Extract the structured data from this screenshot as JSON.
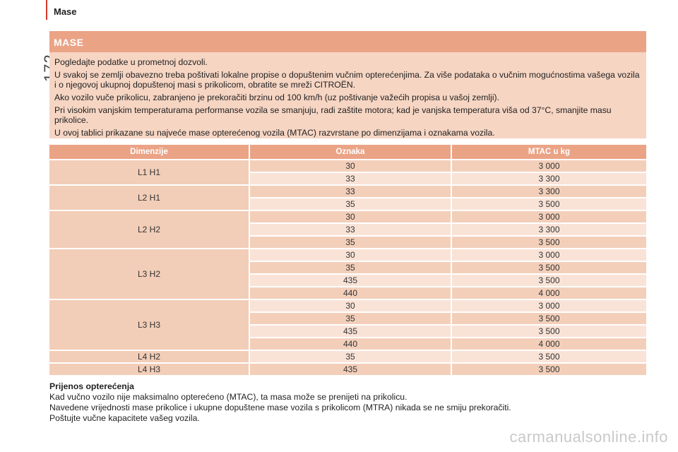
{
  "header": {
    "section": "Mase",
    "page_number": "172"
  },
  "infobox": {
    "title": "MASE",
    "paragraphs": [
      "Pogledajte podatke u prometnoj dozvoli.",
      "U svakoj se zemlji obavezno treba poštivati lokalne propise o dopuštenim vučnim opterećenjima. Za više podataka o vučnim mogućnostima vašega vozila i o njegovoj ukupnoj dopuštenoj masi s prikolicom, obratite se mreži CITROËN.",
      "Ako vozilo vuče prikolicu, zabranjeno je prekoračiti brzinu od 100 km/h (uz poštivanje važećih propisa u vašoj zemlji).",
      "Pri visokim vanjskim temperaturama performanse vozila se smanjuju, radi zaštite motora; kad je vanjska temperatura viša od 37°C, smanjite masu prikolice.",
      "U ovoj tablici prikazane su najveće mase opterećenog vozila (MTAC) razvrstane po dimenzijama i oznakama vozila."
    ]
  },
  "table": {
    "headers": [
      "Dimenzije",
      "Oznaka",
      "MTAC u kg"
    ],
    "groups": [
      {
        "dim": "L1 H1",
        "rows": [
          [
            "30",
            "3 000"
          ],
          [
            "33",
            "3 300"
          ]
        ]
      },
      {
        "dim": "L2 H1",
        "rows": [
          [
            "33",
            "3 300"
          ],
          [
            "35",
            "3 500"
          ]
        ]
      },
      {
        "dim": "L2 H2",
        "rows": [
          [
            "30",
            "3 000"
          ],
          [
            "33",
            "3 300"
          ],
          [
            "35",
            "3 500"
          ]
        ]
      },
      {
        "dim": "L3 H2",
        "rows": [
          [
            "30",
            "3 000"
          ],
          [
            "35",
            "3 500"
          ],
          [
            "435",
            "3 500"
          ],
          [
            "440",
            "4 000"
          ]
        ]
      },
      {
        "dim": "L3 H3",
        "rows": [
          [
            "30",
            "3 000"
          ],
          [
            "35",
            "3 500"
          ],
          [
            "435",
            "3 500"
          ],
          [
            "440",
            "4 000"
          ]
        ]
      },
      {
        "dim": "L4 H2",
        "rows": [
          [
            "35",
            "3 500"
          ]
        ]
      },
      {
        "dim": "L4 H3",
        "rows": [
          [
            "435",
            "3 500"
          ]
        ]
      }
    ]
  },
  "footer": {
    "title": "Prijenos opterećenja",
    "lines": [
      "Kad vučno vozilo nije maksimalno opterećeno (MTAC), ta masa može se prenijeti na prikolicu.",
      "Navedene vrijednosti mase prikolice i ukupne dopuštene mase vozila s prikolicom (MTRA) nikada se ne smiju prekoračiti.",
      "Poštujte vučne kapacitete vašeg vozila."
    ]
  },
  "watermark": "carmanualsonline.info"
}
